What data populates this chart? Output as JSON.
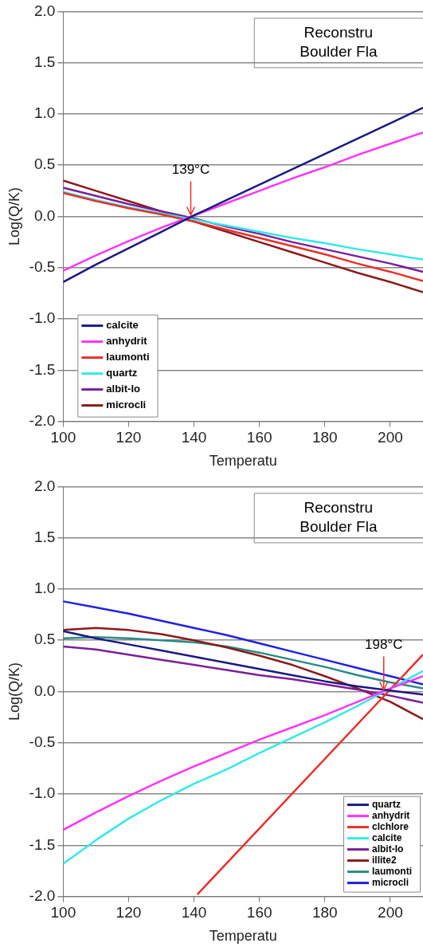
{
  "chart_data": [
    {
      "type": "line",
      "title": "Reconstru\nBoulder Fla",
      "xlabel": "Temperatu",
      "ylabel": "Log(Q/K)",
      "x": [
        100,
        110,
        120,
        130,
        140,
        150,
        160,
        170,
        180,
        190,
        200,
        210
      ],
      "xlim": [
        100,
        210
      ],
      "xticks": [
        100,
        120,
        140,
        160,
        180,
        200
      ],
      "ylim": [
        -2,
        2
      ],
      "yticks": [
        {
          "value": -2,
          "label": "-2.0"
        },
        {
          "value": -1.5,
          "label": "-1.5"
        },
        {
          "value": -1,
          "label": "-1.0"
        },
        {
          "value": -0.5,
          "label": "-0.5"
        },
        {
          "value": 0,
          "label": "0.0"
        },
        {
          "value": 0.5,
          "label": "0.5"
        },
        {
          "value": 1,
          "label": "1.0"
        },
        {
          "value": 1.5,
          "label": "1.5"
        },
        {
          "value": 2,
          "label": "2.0"
        }
      ],
      "grid": "y",
      "legend": "bottom left",
      "marker": "none",
      "line_style": "solid",
      "annotations": [
        {
          "text": "139°C",
          "x": 139,
          "y": 0
        }
      ],
      "series": [
        {
          "name": "calcite",
          "color": "#1a1a80",
          "values": [
            -0.64,
            -0.47,
            -0.31,
            -0.15,
            0.01,
            0.16,
            0.31,
            0.46,
            0.61,
            0.76,
            0.91,
            1.06
          ]
        },
        {
          "name": "anhydrit",
          "color": "#ff33ff",
          "values": [
            -0.53,
            -0.38,
            -0.24,
            -0.11,
            0.01,
            0.13,
            0.25,
            0.37,
            0.48,
            0.6,
            0.71,
            0.82
          ]
        },
        {
          "name": "laumonti",
          "color": "#e8302a",
          "values": [
            0.23,
            0.15,
            0.08,
            0.02,
            -0.05,
            -0.13,
            -0.21,
            -0.29,
            -0.37,
            -0.46,
            -0.54,
            -0.63
          ]
        },
        {
          "name": "quartz",
          "color": "#33e8e8",
          "values": [
            0.24,
            0.16,
            0.09,
            0.03,
            -0.03,
            -0.09,
            -0.15,
            -0.21,
            -0.26,
            -0.32,
            -0.37,
            -0.42
          ]
        },
        {
          "name": "albit-lo",
          "color": "#7a1f99",
          "values": [
            0.28,
            0.2,
            0.12,
            0.05,
            -0.02,
            -0.1,
            -0.17,
            -0.25,
            -0.32,
            -0.39,
            -0.46,
            -0.54
          ]
        },
        {
          "name": "microcli",
          "color": "#8b1a1a",
          "values": [
            0.35,
            0.25,
            0.15,
            0.05,
            -0.05,
            -0.15,
            -0.25,
            -0.35,
            -0.45,
            -0.55,
            -0.64,
            -0.74
          ]
        }
      ]
    },
    {
      "type": "line",
      "title": "Reconstru\nBoulder Fla",
      "xlabel": "Temperatu",
      "ylabel": "Log(Q/K)",
      "x": [
        100,
        110,
        120,
        130,
        140,
        150,
        160,
        170,
        180,
        190,
        200,
        210
      ],
      "xlim": [
        100,
        210
      ],
      "xticks": [
        100,
        120,
        140,
        160,
        180,
        200
      ],
      "ylim": [
        -2,
        2
      ],
      "yticks": [
        {
          "value": -2,
          "label": "-2.0"
        },
        {
          "value": -1.5,
          "label": "-1.5"
        },
        {
          "value": -1,
          "label": "-1.0"
        },
        {
          "value": -0.5,
          "label": "-0.5"
        },
        {
          "value": 0,
          "label": "0.0"
        },
        {
          "value": 0.5,
          "label": "0.5"
        },
        {
          "value": 1,
          "label": "1.0"
        },
        {
          "value": 1.5,
          "label": "1.5"
        },
        {
          "value": 2,
          "label": "2.0"
        }
      ],
      "grid": "y",
      "legend": "bottom right",
      "marker": "none",
      "line_style": "solid",
      "annotations": [
        {
          "text": "198°C",
          "x": 198,
          "y": 0
        }
      ],
      "series": [
        {
          "name": "quartz",
          "color": "#1a1a80",
          "values": [
            0.59,
            0.52,
            0.46,
            0.4,
            0.34,
            0.28,
            0.22,
            0.16,
            0.1,
            0.05,
            0.01,
            -0.03
          ]
        },
        {
          "name": "anhydrit",
          "color": "#ff33ff",
          "values": [
            -1.35,
            -1.18,
            -1.02,
            -0.87,
            -0.73,
            -0.6,
            -0.47,
            -0.35,
            -0.23,
            -0.1,
            0.03,
            0.15
          ]
        },
        {
          "name": "clchlore",
          "color": "#e8302a",
          "x": [
            141,
            210
          ],
          "values": [
            -1.98,
            0.36
          ]
        },
        {
          "name": "calcite",
          "color": "#33e8e8",
          "values": [
            -1.68,
            -1.45,
            -1.24,
            -1.06,
            -0.9,
            -0.76,
            -0.6,
            -0.45,
            -0.3,
            -0.14,
            0.03,
            0.2
          ]
        },
        {
          "name": "albit-lo",
          "color": "#7a1f99",
          "values": [
            0.44,
            0.41,
            0.36,
            0.31,
            0.26,
            0.21,
            0.16,
            0.12,
            0.07,
            0.02,
            -0.04,
            -0.11
          ]
        },
        {
          "name": "illite2",
          "color": "#8b1a1a",
          "values": [
            0.6,
            0.62,
            0.6,
            0.56,
            0.5,
            0.43,
            0.35,
            0.26,
            0.15,
            0.03,
            -0.1,
            -0.27
          ]
        },
        {
          "name": "laumonti",
          "color": "#2a8a85",
          "values": [
            0.52,
            0.53,
            0.52,
            0.5,
            0.48,
            0.44,
            0.38,
            0.31,
            0.24,
            0.16,
            0.09,
            0.03
          ]
        },
        {
          "name": "microcli",
          "color": "#2020e0",
          "values": [
            0.88,
            0.82,
            0.76,
            0.69,
            0.62,
            0.55,
            0.47,
            0.39,
            0.31,
            0.23,
            0.15,
            0.07
          ]
        }
      ]
    }
  ]
}
